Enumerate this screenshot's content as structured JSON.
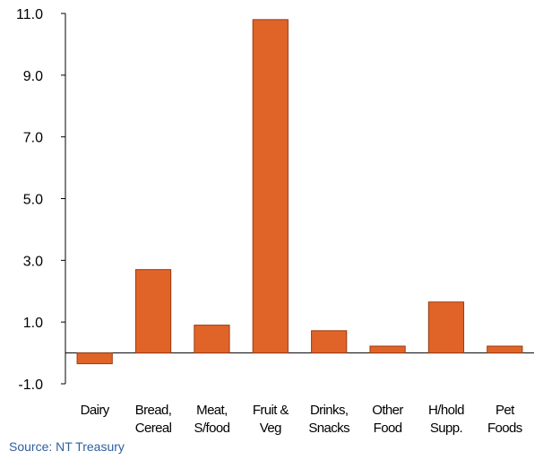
{
  "chart_data": {
    "type": "bar",
    "title": "",
    "xlabel": "",
    "ylabel": "",
    "categories": [
      [
        "Dairy"
      ],
      [
        "Bread,",
        "Cereal"
      ],
      [
        "Meat,",
        "S/food"
      ],
      [
        "Fruit &",
        "Veg"
      ],
      [
        "Drinks,",
        "Snacks"
      ],
      [
        "Other",
        "Food"
      ],
      [
        "H/hold",
        "Supp."
      ],
      [
        "Pet",
        "Foods"
      ]
    ],
    "values": [
      -0.35,
      2.7,
      0.9,
      10.8,
      0.72,
      0.22,
      1.65,
      0.22
    ],
    "yticks": [
      -1.0,
      1.0,
      3.0,
      5.0,
      7.0,
      9.0,
      11.0
    ],
    "ytick_labels": [
      "-1.0",
      "1.0",
      "3.0",
      "5.0",
      "7.0",
      "9.0",
      "11.0"
    ],
    "ylim": [
      -1.0,
      11.0
    ],
    "grid": false,
    "bar_color": "#e06428",
    "bar_edge_color": "#9a3a10"
  },
  "footer": {
    "source": "Source: NT Treasury"
  }
}
